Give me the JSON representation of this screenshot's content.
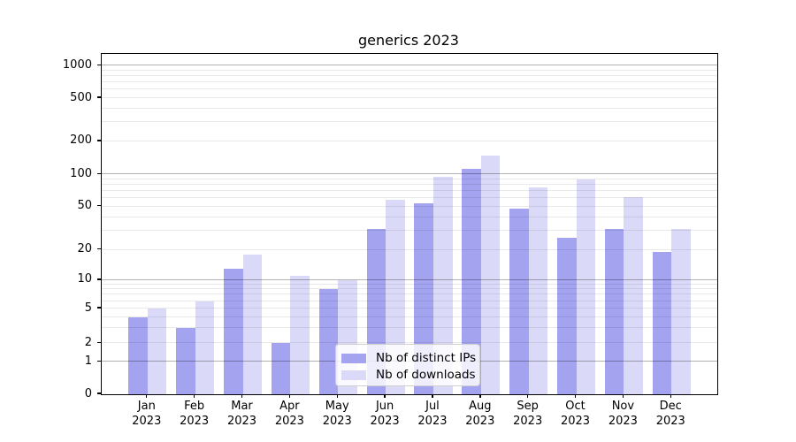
{
  "chart_data": {
    "type": "bar",
    "title": "generics 2023",
    "categories": [
      "Jan",
      "Feb",
      "Mar",
      "Apr",
      "May",
      "Jun",
      "Jul",
      "Aug",
      "Sep",
      "Oct",
      "Nov",
      "Dec"
    ],
    "category_year": "2023",
    "series": [
      {
        "name": "Nb of distinct IPs",
        "color": "#a3a3f0",
        "values": [
          4,
          3,
          13,
          2,
          8,
          31,
          54,
          112,
          48,
          26,
          31,
          19
        ]
      },
      {
        "name": "Nb of downloads",
        "color": "#dadaf8",
        "values": [
          5,
          6,
          18,
          11,
          10,
          58,
          95,
          148,
          75,
          90,
          61,
          31
        ]
      }
    ],
    "xlabel": "",
    "ylabel": "",
    "yscale": "symlog",
    "yticks": [
      0,
      1,
      2,
      5,
      10,
      20,
      50,
      100,
      200,
      500,
      1000
    ],
    "ylim": [
      0,
      1300
    ],
    "grid": "horizontal major and minor gridlines, drawn over bars",
    "legend_position": "inside axes, lower center-left",
    "background_color": "#ffffff",
    "text_color": "#000000"
  }
}
